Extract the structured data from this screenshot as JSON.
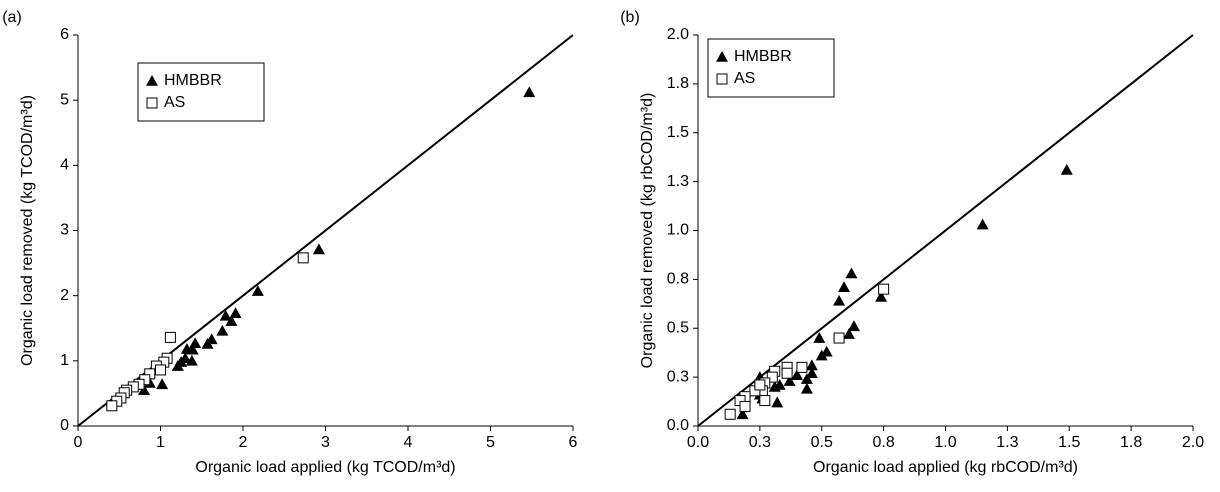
{
  "chart_data": [
    {
      "type": "scatter",
      "panel_label": "(a)",
      "xlabel": "Organic load applied (kg TCOD/m³d)",
      "ylabel": "Organic load removed (kg TCOD/m³d)",
      "xlim": [
        0,
        6
      ],
      "ylim": [
        0,
        6
      ],
      "xticks": [
        0,
        1,
        2,
        3,
        4,
        5,
        6
      ],
      "yticks": [
        0,
        1,
        2,
        3,
        4,
        5,
        6
      ],
      "grid": false,
      "legend": "upper left",
      "line": {
        "x": [
          0,
          6
        ],
        "y": [
          0,
          6
        ],
        "color": "#000000"
      },
      "series": [
        {
          "name": "HMBBR",
          "color": "#000000",
          "marker": "triangle",
          "x": [
            5.47,
            2.92,
            2.18,
            1.91,
            1.86,
            1.79,
            1.75,
            1.62,
            1.57,
            1.39,
            1.42,
            1.32,
            1.3,
            1.38,
            1.25,
            1.21,
            1.02,
            0.87,
            0.8
          ],
          "y": [
            5.12,
            2.71,
            2.07,
            1.73,
            1.61,
            1.69,
            1.46,
            1.33,
            1.26,
            1.17,
            1.27,
            1.18,
            1.04,
            1.0,
            0.98,
            0.92,
            0.64,
            0.66,
            0.55
          ]
        },
        {
          "name": "AS",
          "color": "#000000",
          "marker": "square",
          "x": [
            2.73,
            1.12,
            1.08,
            1.04,
            0.95,
            1.0,
            0.87,
            0.81,
            0.74,
            0.67,
            0.59,
            0.56,
            0.52,
            0.47,
            0.41
          ],
          "y": [
            2.58,
            1.36,
            1.04,
            0.98,
            0.92,
            0.86,
            0.8,
            0.71,
            0.64,
            0.6,
            0.55,
            0.51,
            0.43,
            0.38,
            0.31
          ]
        }
      ]
    },
    {
      "type": "scatter",
      "panel_label": "(b)",
      "xlabel": "Organic load applied (kg rbCOD/m³d)",
      "ylabel": "Organic load removed (kg rbCOD/m³d)",
      "xlim": [
        0,
        2
      ],
      "ylim": [
        0,
        2
      ],
      "xticks": [
        {
          "value": 0,
          "label": "0.0"
        },
        {
          "value": 0.25,
          "label": "0.3"
        },
        {
          "value": 0.5,
          "label": "0.5"
        },
        {
          "value": 0.75,
          "label": "0.8"
        },
        {
          "value": 1,
          "label": "1.0"
        },
        {
          "value": 1.25,
          "label": "1.3"
        },
        {
          "value": 1.5,
          "label": "1.5"
        },
        {
          "value": 1.75,
          "label": "1.8"
        },
        {
          "value": 2,
          "label": "2.0"
        }
      ],
      "yticks": [
        {
          "value": 0,
          "label": "0.0"
        },
        {
          "value": 0.25,
          "label": "0.3"
        },
        {
          "value": 0.5,
          "label": "0.5"
        },
        {
          "value": 0.75,
          "label": "0.8"
        },
        {
          "value": 1,
          "label": "1.0"
        },
        {
          "value": 1.25,
          "label": "1.3"
        },
        {
          "value": 1.5,
          "label": "1.5"
        },
        {
          "value": 1.75,
          "label": "1.8"
        },
        {
          "value": 2,
          "label": "2.0"
        }
      ],
      "grid": false,
      "legend": "upper left",
      "line": {
        "x": [
          0,
          2
        ],
        "y": [
          0,
          2
        ],
        "color": "#000000"
      },
      "series": [
        {
          "name": "HMBBR",
          "color": "#000000",
          "marker": "triangle",
          "x": [
            1.49,
            1.15,
            0.74,
            0.61,
            0.62,
            0.59,
            0.57,
            0.63,
            0.49,
            0.52,
            0.5,
            0.46,
            0.44,
            0.44,
            0.46,
            0.4,
            0.37,
            0.33,
            0.31,
            0.32,
            0.26,
            0.25,
            0.25,
            0.18
          ],
          "y": [
            1.31,
            1.03,
            0.66,
            0.47,
            0.78,
            0.71,
            0.64,
            0.51,
            0.45,
            0.38,
            0.36,
            0.27,
            0.24,
            0.19,
            0.31,
            0.26,
            0.23,
            0.21,
            0.2,
            0.12,
            0.14,
            0.25,
            0.16,
            0.06
          ]
        },
        {
          "name": "AS",
          "color": "#000000",
          "marker": "square",
          "x": [
            0.75,
            0.57,
            0.42,
            0.36,
            0.36,
            0.31,
            0.3,
            0.27,
            0.26,
            0.23,
            0.19,
            0.17,
            0.19,
            0.13,
            0.27,
            0.25
          ],
          "y": [
            0.7,
            0.45,
            0.3,
            0.3,
            0.27,
            0.28,
            0.25,
            0.22,
            0.18,
            0.18,
            0.15,
            0.13,
            0.1,
            0.06,
            0.13,
            0.21
          ]
        }
      ]
    }
  ]
}
